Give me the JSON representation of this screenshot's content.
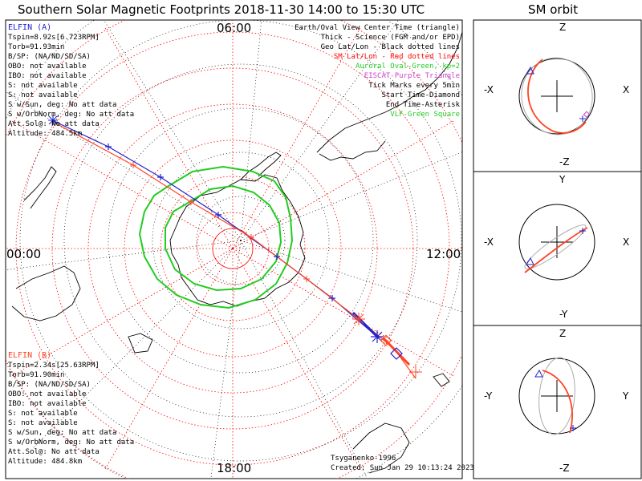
{
  "header": {
    "title": "Southern Solar Magnetic Footprints 2018-11-30 14:00 to 15:30 UTC",
    "orbit_title": "SM orbit"
  },
  "map": {
    "mlt_labels": {
      "top": "06:00",
      "left": "00:00",
      "right": "12:00",
      "bottom": "18:00"
    },
    "legend": [
      {
        "text": "Earth/Oval View Center Time (triangle)",
        "color": "#000000"
      },
      {
        "text": "Thick - Science (FGM and/or EPD)",
        "color": "#000000"
      },
      {
        "text": "Geo Lat/Lon - Black dotted lines",
        "color": "#000000"
      },
      {
        "text": "SM Lat/Lon - Red dotted lines",
        "color": "#ff0000"
      },
      {
        "text": "Auroral Oval-Green, kp=2",
        "color": "#22cc22"
      },
      {
        "text": "EISCAT-Purple Triangle",
        "color": "#cc44cc"
      },
      {
        "text": "Tick Marks every 5min",
        "color": "#000000"
      },
      {
        "text": "Start Time-Diamond",
        "color": "#000000"
      },
      {
        "text": "End Time-Asterisk",
        "color": "#000000"
      },
      {
        "text": "VLF-Green Square",
        "color": "#22cc22"
      }
    ],
    "credit": "Tsyganenko-1996",
    "created": "Created: Sun Jan 29 10:13:24 2023"
  },
  "elfin_a": {
    "name": "ELFIN (A)",
    "color": "#2222cc",
    "lines": [
      "Tspin=8.92s[6.723RPM]",
      "Torb=91.93min",
      "B/SP: (NA/ND/SD/SA)",
      "OBO: not available",
      "IBO: not available",
      "S: not available",
      "S: not available",
      "S w/Sun, deg: No att data",
      "S w/OrbNorm, deg: No att data",
      "Att.Sol@: No att data",
      "Altitude: 484.5km"
    ]
  },
  "elfin_b": {
    "name": "ELFIN (B)",
    "color": "#ff4422",
    "lines": [
      "Tspin=2.34s[25.63RPM]",
      "Torb=91.90min",
      "B/SP: (NA/ND/SD/SA)",
      "OBO: not available",
      "IBO: not available",
      "S: not available",
      "S: not available",
      "S w/Sun, deg: No att data",
      "S w/OrbNorm, deg: No att data",
      "Att.Sol@: No att data",
      "Altitude: 484.8km"
    ]
  },
  "orbit_panels": [
    {
      "top": "Z",
      "bottom": "-Z",
      "left": "-X",
      "right": "X"
    },
    {
      "top": "Y",
      "bottom": "-Y",
      "left": "-X",
      "right": "X"
    },
    {
      "top": "Z",
      "bottom": "-Z",
      "left": "-Y",
      "right": "Y"
    }
  ]
}
